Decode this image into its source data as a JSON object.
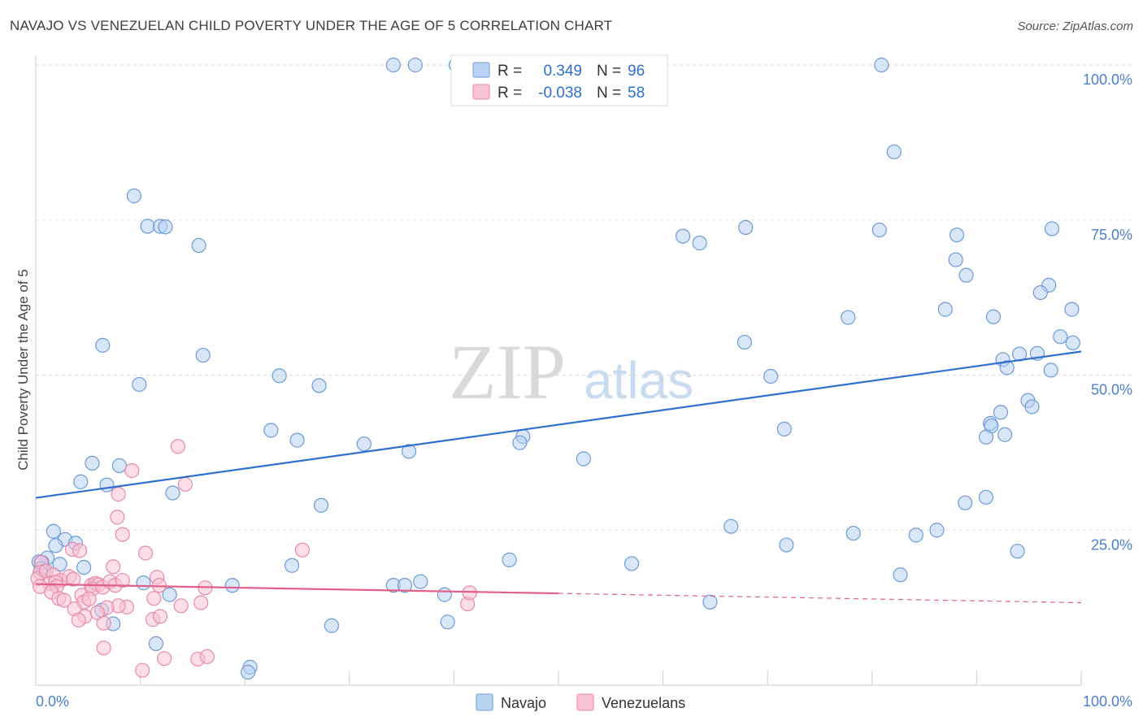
{
  "title": "NAVAJO VS VENEZUELAN CHILD POVERTY UNDER THE AGE OF 5 CORRELATION CHART",
  "source": "Source: ZipAtlas.com",
  "watermark": {
    "zip": "ZIP",
    "atlas": "atlas"
  },
  "colors": {
    "navajo_fill": "#b8d2f2",
    "navajo_stroke": "#6c9ad8",
    "navajo_line": "#2f6fcf",
    "venez_fill": "#f7c3d3",
    "venez_stroke": "#e88aa8",
    "venez_line": "#e0608b",
    "grid": "#dddddd",
    "axis_text": "#4a7fcf"
  },
  "legend": {
    "rows": [
      {
        "r_label": "R =",
        "r_value": "0.349",
        "n_label": "N =",
        "n_value": "96"
      },
      {
        "r_label": "R =",
        "r_value": "-0.038",
        "n_label": "N =",
        "n_value": "58"
      }
    ]
  },
  "chart_data": {
    "type": "scatter",
    "xlabel": "",
    "ylabel": "Child Poverty Under the Age of 5",
    "xlim": [
      0,
      100
    ],
    "ylim": [
      0,
      100
    ],
    "x_tick_labels": [
      "0.0%",
      "100.0%"
    ],
    "y_tick_labels": [
      "25.0%",
      "50.0%",
      "75.0%",
      "100.0%"
    ],
    "y_ticks": [
      25,
      50,
      75,
      100
    ],
    "series": [
      {
        "name": "Navajo",
        "trend": {
          "x": [
            0,
            100
          ],
          "y": [
            30.2,
            53.8
          ],
          "dashed_from": null
        },
        "points": [
          [
            34.2,
            100
          ],
          [
            36.3,
            100
          ],
          [
            40.2,
            100
          ],
          [
            80.9,
            100
          ],
          [
            82.1,
            86
          ],
          [
            9.4,
            78.9
          ],
          [
            10.7,
            74
          ],
          [
            11.9,
            74
          ],
          [
            12.4,
            73.9
          ],
          [
            15.6,
            70.9
          ],
          [
            61.9,
            72.4
          ],
          [
            63.5,
            71.3
          ],
          [
            67.9,
            73.8
          ],
          [
            80.7,
            73.4
          ],
          [
            88.1,
            72.6
          ],
          [
            97.2,
            73.6
          ],
          [
            88.0,
            68.6
          ],
          [
            89.0,
            66.1
          ],
          [
            96.9,
            64.5
          ],
          [
            96.1,
            63.3
          ],
          [
            87.0,
            60.6
          ],
          [
            91.6,
            59.4
          ],
          [
            77.7,
            59.3
          ],
          [
            99.1,
            60.6
          ],
          [
            98.0,
            56.2
          ],
          [
            99.2,
            55.2
          ],
          [
            67.8,
            55.3
          ],
          [
            6.4,
            54.8
          ],
          [
            16.0,
            53.2
          ],
          [
            92.5,
            52.5
          ],
          [
            94.1,
            53.4
          ],
          [
            95.8,
            53.5
          ],
          [
            92.9,
            51.2
          ],
          [
            97.1,
            50.8
          ],
          [
            23.3,
            49.9
          ],
          [
            70.3,
            49.8
          ],
          [
            9.9,
            48.5
          ],
          [
            27.1,
            48.3
          ],
          [
            94.9,
            45.9
          ],
          [
            95.3,
            44.9
          ],
          [
            92.3,
            44
          ],
          [
            91.3,
            42.2
          ],
          [
            91.4,
            41.8
          ],
          [
            71.6,
            41.3
          ],
          [
            22.5,
            41.1
          ],
          [
            90.9,
            40
          ],
          [
            92.7,
            40.4
          ],
          [
            46.6,
            40.1
          ],
          [
            46.3,
            39.1
          ],
          [
            25.0,
            39.5
          ],
          [
            31.4,
            38.9
          ],
          [
            35.7,
            37.7
          ],
          [
            52.4,
            36.5
          ],
          [
            5.4,
            35.8
          ],
          [
            8.0,
            35.4
          ],
          [
            4.3,
            32.8
          ],
          [
            6.8,
            32.3
          ],
          [
            13.1,
            31
          ],
          [
            27.3,
            29
          ],
          [
            88.9,
            29.4
          ],
          [
            90.9,
            30.3
          ],
          [
            66.5,
            25.6
          ],
          [
            1.7,
            24.8
          ],
          [
            78.2,
            24.5
          ],
          [
            84.2,
            24.2
          ],
          [
            86.2,
            25
          ],
          [
            2.8,
            23.5
          ],
          [
            3.8,
            22.9
          ],
          [
            1.9,
            22.5
          ],
          [
            71.8,
            22.6
          ],
          [
            93.9,
            21.6
          ],
          [
            1.1,
            20.5
          ],
          [
            0.3,
            19.9
          ],
          [
            0.6,
            19.8
          ],
          [
            2.3,
            19.5
          ],
          [
            0.5,
            18.8
          ],
          [
            0.8,
            18.4
          ],
          [
            4.6,
            19
          ],
          [
            45.3,
            20.2
          ],
          [
            57.0,
            19.6
          ],
          [
            24.5,
            19.3
          ],
          [
            82.7,
            17.8
          ],
          [
            36.8,
            16.7
          ],
          [
            10.3,
            16.5
          ],
          [
            18.8,
            16.1
          ],
          [
            34.2,
            16.1
          ],
          [
            35.3,
            16.1
          ],
          [
            39.1,
            14.6
          ],
          [
            12.8,
            14.6
          ],
          [
            64.5,
            13.4
          ],
          [
            6.3,
            12.1
          ],
          [
            7.4,
            9.9
          ],
          [
            39.4,
            10.2
          ],
          [
            28.3,
            9.6
          ],
          [
            11.5,
            6.7
          ],
          [
            20.5,
            2.9
          ],
          [
            20.3,
            2.1
          ]
        ]
      },
      {
        "name": "Venezuelans",
        "trend": {
          "x": [
            0,
            100
          ],
          "y": [
            16.3,
            13.3
          ],
          "dashed_from": 50
        },
        "points": [
          [
            13.6,
            38.5
          ],
          [
            14.3,
            32.4
          ],
          [
            9.2,
            34.6
          ],
          [
            7.9,
            30.8
          ],
          [
            7.8,
            27.1
          ],
          [
            8.3,
            24.3
          ],
          [
            0.5,
            19.8
          ],
          [
            0.4,
            18.2
          ],
          [
            0.2,
            17.2
          ],
          [
            1.0,
            18.4
          ],
          [
            1.7,
            17.8
          ],
          [
            2.4,
            16.9
          ],
          [
            3.2,
            17.5
          ],
          [
            1.3,
            16.4
          ],
          [
            1.9,
            16.6
          ],
          [
            2.0,
            15.9
          ],
          [
            0.4,
            15.9
          ],
          [
            1.5,
            15.0
          ],
          [
            2.2,
            14.0
          ],
          [
            2.7,
            13.7
          ],
          [
            3.5,
            21.9
          ],
          [
            4.2,
            21.7
          ],
          [
            3.6,
            17.1
          ],
          [
            5.3,
            16.1
          ],
          [
            5.7,
            16.4
          ],
          [
            6.0,
            16.2
          ],
          [
            5.4,
            15.5
          ],
          [
            4.4,
            14.5
          ],
          [
            4.6,
            13.4
          ],
          [
            5.1,
            13.9
          ],
          [
            6.4,
            15.8
          ],
          [
            7.1,
            16.7
          ],
          [
            7.4,
            19.1
          ],
          [
            7.6,
            16.1
          ],
          [
            8.3,
            16.9
          ],
          [
            10.5,
            21.3
          ],
          [
            11.6,
            17.4
          ],
          [
            11.8,
            16.1
          ],
          [
            11.3,
            14.0
          ],
          [
            8.7,
            12.6
          ],
          [
            7.9,
            12.8
          ],
          [
            6.8,
            12.5
          ],
          [
            3.7,
            12.3
          ],
          [
            4.7,
            11.1
          ],
          [
            5.9,
            11.7
          ],
          [
            4.1,
            10.5
          ],
          [
            6.5,
            10.0
          ],
          [
            11.2,
            10.6
          ],
          [
            11.9,
            11.1
          ],
          [
            13.9,
            12.8
          ],
          [
            15.8,
            13.3
          ],
          [
            16.2,
            15.7
          ],
          [
            25.5,
            21.8
          ],
          [
            41.3,
            13.1
          ],
          [
            41.5,
            14.9
          ],
          [
            6.5,
            6.0
          ],
          [
            12.3,
            4.3
          ],
          [
            15.5,
            4.2
          ],
          [
            16.4,
            4.6
          ],
          [
            10.2,
            2.4
          ]
        ]
      }
    ],
    "bottom_legend": [
      "Navajo",
      "Venezuelans"
    ]
  }
}
